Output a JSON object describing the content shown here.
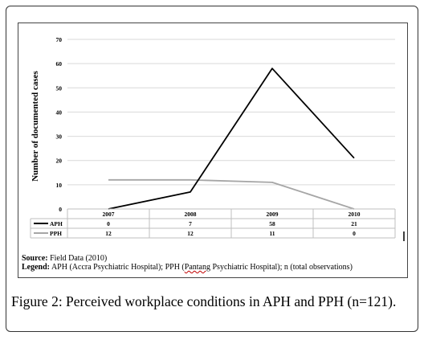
{
  "chart_data": {
    "type": "line",
    "ylabel": "Number of documented cases",
    "xlabel": "",
    "ylim": [
      0,
      70
    ],
    "yticks": [
      0,
      10,
      20,
      30,
      40,
      50,
      60,
      70
    ],
    "categories": [
      "2007",
      "2008",
      "2009",
      "2010"
    ],
    "series": [
      {
        "name": "APH",
        "color": "#000000",
        "values": [
          0,
          7,
          58,
          21
        ]
      },
      {
        "name": "PPH",
        "color": "#a6a6a6",
        "values": [
          12,
          12,
          11,
          0
        ]
      }
    ],
    "data_table": true,
    "grid": true
  },
  "notes": {
    "source_label": "Source:",
    "source_text": " Field Data (2010)",
    "legend_label": "Legend:",
    "legend_text_1": " APH (Accra Psychiatric Hospital); PPH (",
    "legend_pantang": "Pantang",
    "legend_text_2": " Psychiatric Hospital); n (total observations)"
  },
  "caption": "Figure 2: Perceived workplace conditions in APH and PPH (n=121)."
}
